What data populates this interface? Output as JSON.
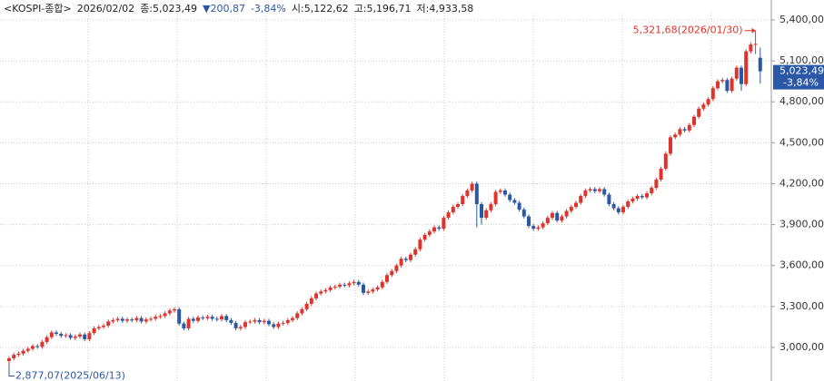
{
  "chart_data": {
    "type": "candlestick",
    "header": {
      "symbol": "<KOSPI-종합>",
      "date": "2026/02/02",
      "close": "종:5,023,49",
      "change": "▼200,87",
      "change_pct": "-3,84%",
      "open": "시:5,122,62",
      "high": "고:5,196,71",
      "low": "저:4,933,58"
    },
    "high_label": "5,321,68(2026/01/30)",
    "low_label": "2,877,07(2025/06/13)",
    "last_price_label": "5,023,49",
    "last_change_label": "-3,84%",
    "up_color": "#e0332b",
    "down_color": "#2b58a6",
    "ylim": [
      2754,
      5546
    ],
    "yticks": [
      {
        "value": 3000,
        "label": "3,000,00"
      },
      {
        "value": 3300,
        "label": "3,300,00"
      },
      {
        "value": 3600,
        "label": "3,600,00"
      },
      {
        "value": 3900,
        "label": "3,900,00"
      },
      {
        "value": 4200,
        "label": "4,200,00"
      },
      {
        "value": 4500,
        "label": "4,500,00"
      },
      {
        "value": 4800,
        "label": "4,800,00"
      },
      {
        "value": 5100,
        "label": "5,100,00"
      },
      {
        "value": 5400,
        "label": "5,400,00"
      }
    ],
    "grid": true,
    "open": [
      2900,
      2920,
      2946,
      2955,
      2975,
      2990,
      3010,
      3005,
      3040,
      3075,
      3110,
      3100,
      3085,
      3090,
      3070,
      3080,
      3095,
      3060,
      3105,
      3140,
      3150,
      3160,
      3190,
      3200,
      3210,
      3195,
      3205,
      3200,
      3215,
      3190,
      3205,
      3210,
      3225,
      3230,
      3250,
      3270,
      3280,
      3175,
      3140,
      3210,
      3195,
      3220,
      3215,
      3225,
      3210,
      3205,
      3230,
      3200,
      3180,
      3140,
      3150,
      3185,
      3190,
      3200,
      3185,
      3195,
      3170,
      3150,
      3175,
      3180,
      3200,
      3215,
      3250,
      3280,
      3320,
      3360,
      3395,
      3410,
      3420,
      3440,
      3445,
      3460,
      3455,
      3470,
      3480,
      3460,
      3400,
      3410,
      3425,
      3440,
      3480,
      3530,
      3560,
      3600,
      3650,
      3640,
      3680,
      3720,
      3790,
      3825,
      3850,
      3880,
      3870,
      3950,
      3990,
      4030,
      4050,
      4110,
      4150,
      4200,
      4050,
      3950,
      4005,
      4050,
      4140,
      4150,
      4120,
      4080,
      4060,
      4010,
      3960,
      3890,
      3870,
      3880,
      3910,
      3950,
      3985,
      3930,
      3960,
      4000,
      4030,
      4060,
      4110,
      4150,
      4160,
      4145,
      4160,
      4120,
      4050,
      4020,
      3990,
      4030,
      4070,
      4090,
      4110,
      4100,
      4130,
      4170,
      4230,
      4310,
      4420,
      4540,
      4560,
      4600,
      4590,
      4630,
      4690,
      4750,
      4780,
      4820,
      4900,
      4950,
      4960,
      4880,
      4970,
      5050,
      4930,
      5170,
      5220,
      5122.62
    ],
    "high": [
      2935,
      2961,
      2970,
      2990,
      3005,
      3025,
      3025,
      3055,
      3090,
      3125,
      3125,
      3115,
      3105,
      3105,
      3095,
      3110,
      3110,
      3120,
      3155,
      3165,
      3175,
      3205,
      3215,
      3225,
      3225,
      3220,
      3220,
      3230,
      3230,
      3220,
      3225,
      3240,
      3245,
      3265,
      3285,
      3295,
      3295,
      3190,
      3225,
      3225,
      3235,
      3235,
      3240,
      3240,
      3225,
      3245,
      3245,
      3215,
      3195,
      3165,
      3200,
      3205,
      3215,
      3215,
      3210,
      3210,
      3185,
      3190,
      3195,
      3215,
      3230,
      3265,
      3295,
      3335,
      3375,
      3410,
      3425,
      3435,
      3455,
      3460,
      3475,
      3475,
      3485,
      3495,
      3495,
      3475,
      3425,
      3440,
      3455,
      3495,
      3545,
      3575,
      3615,
      3665,
      3665,
      3695,
      3735,
      3805,
      3840,
      3865,
      3895,
      3895,
      3965,
      4005,
      4045,
      4065,
      4125,
      4165,
      4215,
      4215,
      4065,
      4020,
      4065,
      4155,
      4165,
      4165,
      4135,
      4095,
      4075,
      4025,
      3975,
      3905,
      3895,
      3925,
      3965,
      4000,
      4000,
      3975,
      4015,
      4045,
      4075,
      4125,
      4165,
      4175,
      4175,
      4175,
      4175,
      4135,
      4065,
      4035,
      4045,
      4085,
      4105,
      4125,
      4125,
      4145,
      4185,
      4245,
      4325,
      4435,
      4555,
      4575,
      4615,
      4615,
      4645,
      4705,
      4765,
      4795,
      4835,
      4915,
      4965,
      4975,
      4975,
      4985,
      5065,
      5065,
      5185,
      5235,
      5321.68,
      5196.71
    ],
    "low": [
      2877.07,
      2905,
      2931,
      2940,
      2960,
      2975,
      2990,
      2990,
      3025,
      3060,
      3085,
      3070,
      3070,
      3055,
      3055,
      3065,
      3045,
      3045,
      3090,
      3125,
      3135,
      3145,
      3175,
      3185,
      3180,
      3180,
      3185,
      3185,
      3175,
      3175,
      3190,
      3195,
      3210,
      3215,
      3235,
      3255,
      3160,
      3125,
      3125,
      3180,
      3180,
      3200,
      3200,
      3195,
      3190,
      3190,
      3185,
      3165,
      3125,
      3125,
      3135,
      3170,
      3175,
      3170,
      3170,
      3155,
      3135,
      3135,
      3160,
      3165,
      3185,
      3200,
      3235,
      3265,
      3305,
      3345,
      3380,
      3395,
      3405,
      3425,
      3430,
      3440,
      3440,
      3455,
      3445,
      3385,
      3385,
      3395,
      3410,
      3425,
      3465,
      3515,
      3545,
      3585,
      3625,
      3625,
      3665,
      3705,
      3775,
      3810,
      3835,
      3855,
      3855,
      3935,
      3975,
      4015,
      4035,
      4095,
      4135,
      3880,
      3900,
      3935,
      3990,
      4035,
      4125,
      4105,
      4065,
      4045,
      3995,
      3945,
      3875,
      3855,
      3855,
      3865,
      3895,
      3935,
      3915,
      3915,
      3945,
      3985,
      4015,
      4045,
      4095,
      4135,
      4130,
      4130,
      4105,
      4035,
      4005,
      3975,
      3975,
      4015,
      4055,
      4075,
      4085,
      4085,
      4115,
      4155,
      4215,
      4295,
      4405,
      4525,
      4545,
      4575,
      4575,
      4615,
      4675,
      4735,
      4765,
      4805,
      4885,
      4935,
      4865,
      4865,
      4955,
      4880,
      4915,
      5155,
      5150,
      4933.58
    ],
    "close": [
      2920,
      2946,
      2955,
      2975,
      2990,
      3010,
      3005,
      3040,
      3075,
      3110,
      3100,
      3085,
      3090,
      3070,
      3080,
      3095,
      3060,
      3105,
      3140,
      3150,
      3160,
      3190,
      3200,
      3210,
      3195,
      3205,
      3200,
      3215,
      3190,
      3205,
      3210,
      3225,
      3230,
      3250,
      3270,
      3280,
      3175,
      3140,
      3210,
      3195,
      3220,
      3215,
      3225,
      3210,
      3205,
      3230,
      3200,
      3180,
      3140,
      3150,
      3185,
      3190,
      3200,
      3185,
      3195,
      3170,
      3150,
      3175,
      3180,
      3200,
      3215,
      3250,
      3280,
      3320,
      3360,
      3395,
      3410,
      3420,
      3440,
      3445,
      3460,
      3455,
      3470,
      3480,
      3460,
      3400,
      3410,
      3425,
      3440,
      3480,
      3530,
      3560,
      3600,
      3650,
      3640,
      3680,
      3720,
      3790,
      3825,
      3850,
      3880,
      3870,
      3950,
      3990,
      4030,
      4050,
      4110,
      4150,
      4200,
      4050,
      3950,
      4005,
      4050,
      4140,
      4150,
      4120,
      4080,
      4060,
      4010,
      3960,
      3890,
      3870,
      3880,
      3910,
      3950,
      3985,
      3930,
      3960,
      4000,
      4030,
      4060,
      4110,
      4150,
      4160,
      4145,
      4160,
      4120,
      4050,
      4020,
      3990,
      4030,
      4070,
      4090,
      4110,
      4100,
      4130,
      4170,
      4230,
      4310,
      4420,
      4540,
      4560,
      4600,
      4590,
      4630,
      4690,
      4750,
      4780,
      4820,
      4900,
      4950,
      4960,
      4880,
      4970,
      5050,
      4930,
      5170,
      5220,
      5224.36,
      5023.49
    ]
  }
}
